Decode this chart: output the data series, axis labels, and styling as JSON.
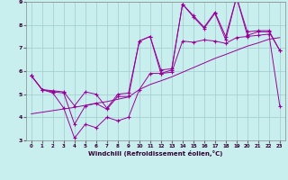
{
  "xlabel": "Windchill (Refroidissement éolien,°C)",
  "bg_color": "#c8eeee",
  "grid_color": "#a0cccc",
  "line_color": "#990099",
  "xlim": [
    -0.5,
    23.5
  ],
  "ylim": [
    3,
    9
  ],
  "xticks": [
    0,
    1,
    2,
    3,
    4,
    5,
    6,
    7,
    8,
    9,
    10,
    11,
    12,
    13,
    14,
    15,
    16,
    17,
    18,
    19,
    20,
    21,
    22,
    23
  ],
  "yticks": [
    3,
    4,
    5,
    6,
    7,
    8,
    9
  ],
  "x": [
    0,
    1,
    2,
    3,
    4,
    5,
    6,
    7,
    8,
    9,
    10,
    11,
    12,
    13,
    14,
    15,
    16,
    17,
    18,
    19,
    20,
    21,
    22,
    23
  ],
  "y_high": [
    5.8,
    5.2,
    5.15,
    5.1,
    4.5,
    5.1,
    5.0,
    4.4,
    5.0,
    5.05,
    7.3,
    7.5,
    6.05,
    6.1,
    8.9,
    8.4,
    7.9,
    8.55,
    7.5,
    9.2,
    7.7,
    7.75,
    7.75,
    6.9
  ],
  "y_main": [
    5.8,
    5.2,
    5.1,
    5.05,
    3.7,
    4.5,
    4.6,
    4.35,
    4.9,
    4.9,
    7.3,
    7.5,
    5.9,
    6.05,
    8.9,
    8.35,
    7.85,
    8.5,
    7.35,
    9.2,
    7.55,
    7.7,
    7.7,
    6.9
  ],
  "y_low": [
    5.8,
    5.2,
    5.05,
    4.4,
    3.1,
    3.7,
    3.55,
    4.0,
    3.85,
    4.0,
    5.2,
    5.9,
    5.9,
    5.95,
    7.3,
    7.25,
    7.35,
    7.3,
    7.2,
    7.45,
    7.5,
    7.55,
    7.6,
    4.5
  ],
  "y_trend": [
    4.15,
    4.22,
    4.29,
    4.36,
    4.43,
    4.52,
    4.61,
    4.68,
    4.78,
    4.88,
    5.2,
    5.42,
    5.58,
    5.75,
    5.95,
    6.15,
    6.35,
    6.55,
    6.72,
    6.9,
    7.08,
    7.22,
    7.38,
    7.45
  ]
}
